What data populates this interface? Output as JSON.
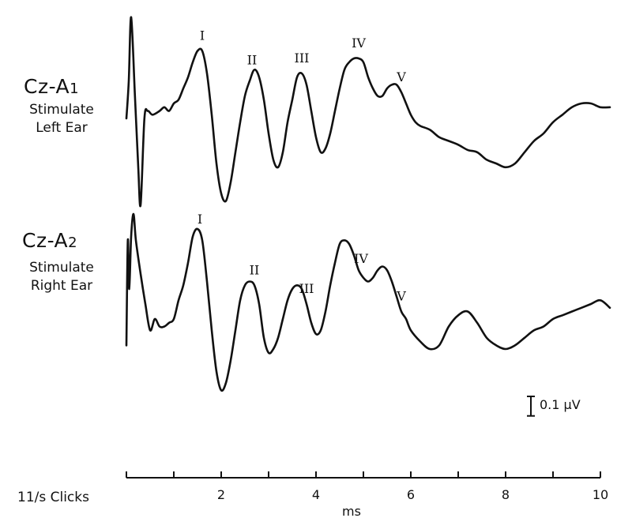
{
  "chart_data": [
    {
      "type": "line",
      "lead": "Cz-A1",
      "lead_main": "Cz-A",
      "lead_sub": "1",
      "stimulus": [
        "Stimulate",
        "Left Ear"
      ],
      "peaks": [
        {
          "label": "I",
          "x": 1.6
        },
        {
          "label": "II",
          "x": 2.65
        },
        {
          "label": "III",
          "x": 3.7
        },
        {
          "label": "IV",
          "x": 4.9
        },
        {
          "label": "V",
          "x": 5.8
        }
      ],
      "x": [
        0,
        0.05,
        0.1,
        0.18,
        0.25,
        0.3,
        0.38,
        0.45,
        0.55,
        0.7,
        0.8,
        0.9,
        1.0,
        1.1,
        1.2,
        1.3,
        1.4,
        1.5,
        1.6,
        1.7,
        1.8,
        1.9,
        2.0,
        2.1,
        2.2,
        2.3,
        2.4,
        2.5,
        2.6,
        2.7,
        2.8,
        2.9,
        3.0,
        3.1,
        3.2,
        3.3,
        3.4,
        3.5,
        3.6,
        3.7,
        3.8,
        3.9,
        4.0,
        4.1,
        4.2,
        4.3,
        4.4,
        4.5,
        4.6,
        4.7,
        4.8,
        4.9,
        5.0,
        5.1,
        5.2,
        5.3,
        5.4,
        5.5,
        5.6,
        5.7,
        5.8,
        5.9,
        6.0,
        6.1,
        6.2,
        6.4,
        6.6,
        6.8,
        7.0,
        7.2,
        7.4,
        7.6,
        7.8,
        8.0,
        8.2,
        8.4,
        8.6,
        8.8,
        9.0,
        9.2,
        9.4,
        9.6,
        9.8,
        10.0,
        10.2
      ],
      "values": [
        0.0,
        0.5,
        1.35,
        0.3,
        -0.65,
        -1.15,
        0.0,
        0.1,
        0.05,
        0.1,
        0.15,
        0.1,
        0.2,
        0.25,
        0.4,
        0.55,
        0.75,
        0.9,
        0.9,
        0.6,
        0.05,
        -0.6,
        -1.0,
        -1.1,
        -0.85,
        -0.45,
        -0.05,
        0.3,
        0.5,
        0.65,
        0.55,
        0.25,
        -0.2,
        -0.55,
        -0.65,
        -0.45,
        -0.05,
        0.25,
        0.55,
        0.6,
        0.45,
        0.1,
        -0.25,
        -0.45,
        -0.4,
        -0.2,
        0.1,
        0.4,
        0.65,
        0.75,
        0.8,
        0.8,
        0.75,
        0.55,
        0.4,
        0.3,
        0.3,
        0.4,
        0.45,
        0.45,
        0.35,
        0.2,
        0.05,
        -0.05,
        -0.1,
        -0.15,
        -0.25,
        -0.3,
        -0.35,
        -0.42,
        -0.45,
        -0.55,
        -0.6,
        -0.65,
        -0.6,
        -0.45,
        -0.3,
        -0.2,
        -0.05,
        0.05,
        0.15,
        0.2,
        0.2,
        0.15,
        0.15
      ],
      "xlim": [
        0,
        10.2
      ]
    },
    {
      "type": "line",
      "lead": "Cz-A2",
      "lead_main": "Cz-A",
      "lead_sub": "2",
      "stimulus": [
        "Stimulate",
        "Right Ear"
      ],
      "peaks": [
        {
          "label": "I",
          "x": 1.55
        },
        {
          "label": "II",
          "x": 2.7
        },
        {
          "label": "III",
          "x": 3.8
        },
        {
          "label": "IV",
          "x": 4.95
        },
        {
          "label": "V",
          "x": 5.8
        }
      ],
      "x": [
        0,
        0.03,
        0.06,
        0.1,
        0.15,
        0.2,
        0.3,
        0.4,
        0.5,
        0.6,
        0.7,
        0.8,
        0.9,
        1.0,
        1.1,
        1.2,
        1.3,
        1.4,
        1.5,
        1.6,
        1.7,
        1.8,
        1.9,
        2.0,
        2.1,
        2.2,
        2.3,
        2.4,
        2.5,
        2.6,
        2.7,
        2.8,
        2.9,
        3.0,
        3.1,
        3.2,
        3.3,
        3.4,
        3.5,
        3.6,
        3.7,
        3.8,
        3.9,
        4.0,
        4.1,
        4.2,
        4.3,
        4.4,
        4.5,
        4.6,
        4.7,
        4.8,
        4.9,
        5.0,
        5.1,
        5.2,
        5.3,
        5.4,
        5.5,
        5.6,
        5.7,
        5.8,
        5.9,
        6.0,
        6.2,
        6.4,
        6.6,
        6.8,
        7.0,
        7.2,
        7.4,
        7.6,
        7.8,
        8.0,
        8.2,
        8.4,
        8.6,
        8.8,
        9.0,
        9.2,
        9.4,
        9.6,
        9.8,
        10.0,
        10.2
      ],
      "values": [
        -0.55,
        0.85,
        0.2,
        0.9,
        1.2,
        0.85,
        0.4,
        0.0,
        -0.35,
        -0.2,
        -0.3,
        -0.3,
        -0.25,
        -0.2,
        0.05,
        0.25,
        0.55,
        0.9,
        1.0,
        0.85,
        0.3,
        -0.35,
        -0.9,
        -1.15,
        -1.05,
        -0.75,
        -0.35,
        0.05,
        0.25,
        0.3,
        0.25,
        0.0,
        -0.45,
        -0.65,
        -0.6,
        -0.45,
        -0.2,
        0.05,
        0.2,
        0.25,
        0.2,
        0.0,
        -0.25,
        -0.4,
        -0.35,
        -0.1,
        0.25,
        0.55,
        0.8,
        0.85,
        0.8,
        0.65,
        0.45,
        0.35,
        0.3,
        0.35,
        0.45,
        0.5,
        0.45,
        0.3,
        0.1,
        -0.1,
        -0.2,
        -0.35,
        -0.5,
        -0.6,
        -0.55,
        -0.3,
        -0.15,
        -0.1,
        -0.25,
        -0.45,
        -0.55,
        -0.6,
        -0.55,
        -0.45,
        -0.35,
        -0.3,
        -0.2,
        -0.15,
        -0.1,
        -0.05,
        0.0,
        0.05,
        -0.05
      ],
      "xlim": [
        0,
        10.2
      ]
    }
  ],
  "axis": {
    "ticks": [
      0,
      1,
      2,
      3,
      4,
      5,
      6,
      7,
      8,
      9,
      10
    ],
    "tick_labels": [
      "2",
      "4",
      "6",
      "8",
      "10"
    ],
    "tick_label_values": [
      2,
      4,
      6,
      8,
      10
    ],
    "xlabel": "ms",
    "left_label": "11/s Clicks"
  },
  "scale_bar": {
    "text": "0.1 μV",
    "value": 0.1
  }
}
